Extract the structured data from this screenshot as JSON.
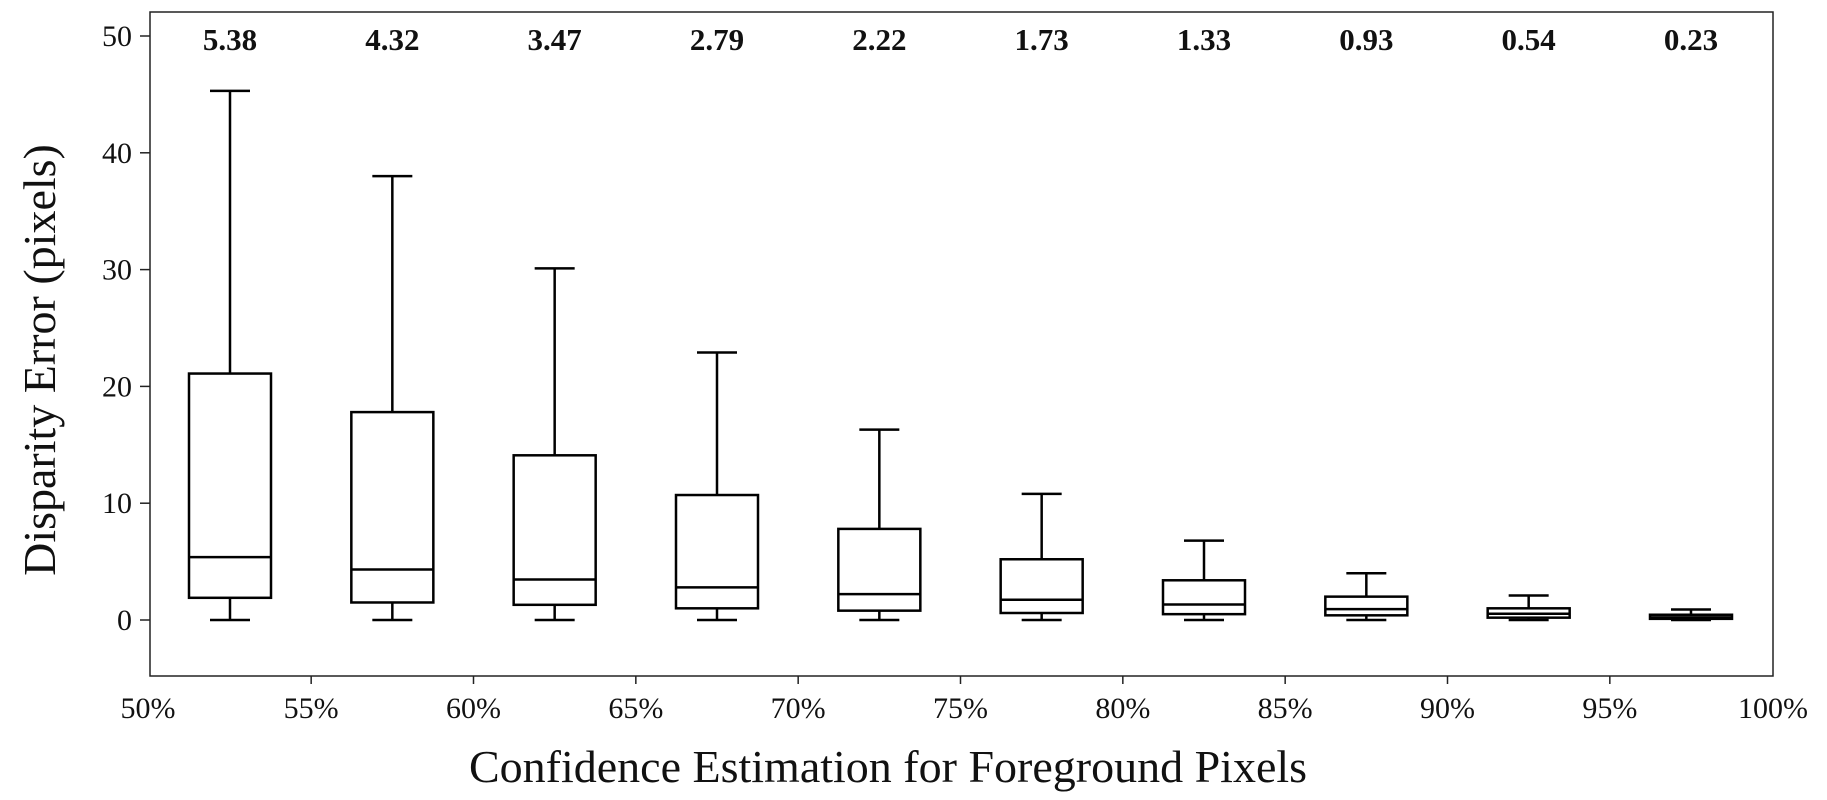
{
  "chart_data": {
    "type": "box",
    "title": "",
    "xlabel": "Confidence Estimation for Foreground Pixels",
    "ylabel": "Disparity Error (pixels)",
    "ylim": [
      -5,
      52
    ],
    "yticks": [
      0,
      10,
      20,
      30,
      40,
      50
    ],
    "xtick_labels": [
      "50%",
      "55%",
      "60%",
      "65%",
      "70%",
      "75%",
      "80%",
      "85%",
      "90%",
      "95%",
      "100%"
    ],
    "grid": false,
    "boxes": [
      {
        "range": "50%-55%",
        "whisker_low": 0,
        "q1": 1.9,
        "median": 5.38,
        "q3": 21.1,
        "whisker_high": 45.3,
        "label": "5.38"
      },
      {
        "range": "55%-60%",
        "whisker_low": 0,
        "q1": 1.5,
        "median": 4.32,
        "q3": 17.8,
        "whisker_high": 38.0,
        "label": "4.32"
      },
      {
        "range": "60%-65%",
        "whisker_low": 0,
        "q1": 1.3,
        "median": 3.47,
        "q3": 14.1,
        "whisker_high": 30.1,
        "label": "3.47"
      },
      {
        "range": "65%-70%",
        "whisker_low": 0,
        "q1": 1.0,
        "median": 2.79,
        "q3": 10.7,
        "whisker_high": 22.9,
        "label": "2.79"
      },
      {
        "range": "70%-75%",
        "whisker_low": 0,
        "q1": 0.8,
        "median": 2.22,
        "q3": 7.8,
        "whisker_high": 16.3,
        "label": "2.22"
      },
      {
        "range": "75%-80%",
        "whisker_low": 0,
        "q1": 0.6,
        "median": 1.73,
        "q3": 5.2,
        "whisker_high": 10.8,
        "label": "1.73"
      },
      {
        "range": "80%-85%",
        "whisker_low": 0,
        "q1": 0.5,
        "median": 1.33,
        "q3": 3.4,
        "whisker_high": 6.8,
        "label": "1.33"
      },
      {
        "range": "85%-90%",
        "whisker_low": 0,
        "q1": 0.4,
        "median": 0.93,
        "q3": 2.0,
        "whisker_high": 4.0,
        "label": "0.93"
      },
      {
        "range": "90%-95%",
        "whisker_low": 0,
        "q1": 0.2,
        "median": 0.54,
        "q3": 1.0,
        "whisker_high": 2.1,
        "label": "0.54"
      },
      {
        "range": "95%-100%",
        "whisker_low": 0,
        "q1": 0.1,
        "median": 0.23,
        "q3": 0.45,
        "whisker_high": 0.9,
        "label": "0.23"
      }
    ]
  }
}
